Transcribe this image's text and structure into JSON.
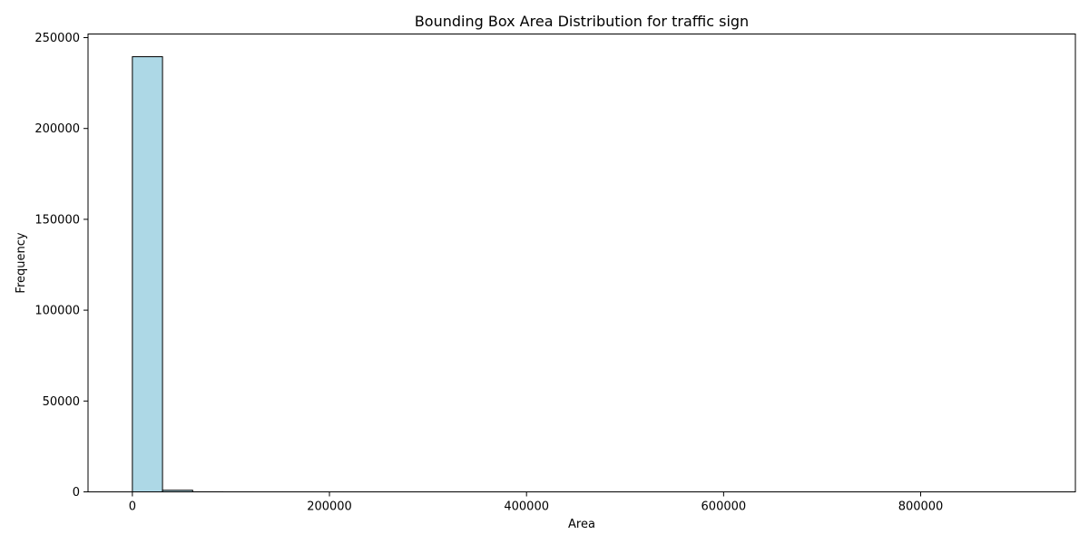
{
  "chart_data": {
    "type": "bar",
    "title": "Bounding Box Area Distribution for traffic sign",
    "xlabel": "Area",
    "ylabel": "Frequency",
    "xlim": [
      -45000,
      957000
    ],
    "ylim": [
      0,
      252000
    ],
    "x_ticks": [
      0,
      200000,
      400000,
      600000,
      800000
    ],
    "y_ticks": [
      0,
      50000,
      100000,
      150000,
      200000,
      250000
    ],
    "bin_edges": [
      0,
      30600,
      61200,
      91800,
      122400,
      153000,
      183600,
      214200,
      244800,
      275400,
      306000,
      336600,
      367200,
      397800,
      428400,
      459000,
      489600,
      520200,
      550800,
      581400,
      612000,
      642600,
      673200,
      703800,
      734400,
      765000,
      795600,
      826200,
      856800,
      887400,
      918000
    ],
    "values": [
      239500,
      900,
      40,
      12,
      6,
      4,
      3,
      2,
      2,
      1,
      1,
      1,
      1,
      1,
      1,
      1,
      1,
      1,
      1,
      1,
      1,
      1,
      1,
      1,
      1,
      1,
      1,
      1,
      1,
      1
    ],
    "bar_color": "#add8e6",
    "edge_color": "#000000",
    "grid": false,
    "legend": "none"
  }
}
